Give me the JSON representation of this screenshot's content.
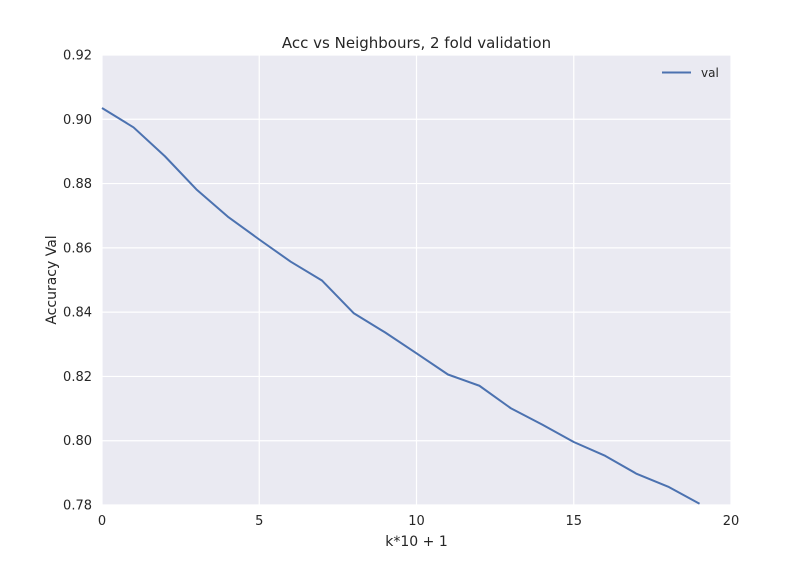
{
  "chart_data": {
    "type": "line",
    "title": "Acc vs Neighbours, 2 fold validation",
    "xlabel": "k*10 + 1",
    "ylabel": "Accuracy Val",
    "xlim": [
      0,
      20
    ],
    "ylim": [
      0.78,
      0.92
    ],
    "xticks": [
      "0",
      "5",
      "10",
      "15",
      "20"
    ],
    "yticks": [
      "0.78",
      "0.80",
      "0.82",
      "0.84",
      "0.86",
      "0.88",
      "0.90",
      "0.92"
    ],
    "grid": true,
    "legend_position": "top-right",
    "x": [
      0,
      1,
      2,
      3,
      4,
      5,
      6,
      7,
      8,
      9,
      10,
      11,
      12,
      13,
      14,
      15,
      16,
      17,
      18,
      19
    ],
    "series": [
      {
        "name": "val",
        "color": "#4c72b0",
        "values": [
          0.9035,
          0.8975,
          0.8885,
          0.8782,
          0.8697,
          0.8626,
          0.8557,
          0.8498,
          0.8397,
          0.8337,
          0.8272,
          0.8206,
          0.8171,
          0.8101,
          0.805,
          0.7996,
          0.7953,
          0.7897,
          0.7857,
          0.7804
        ]
      }
    ]
  }
}
